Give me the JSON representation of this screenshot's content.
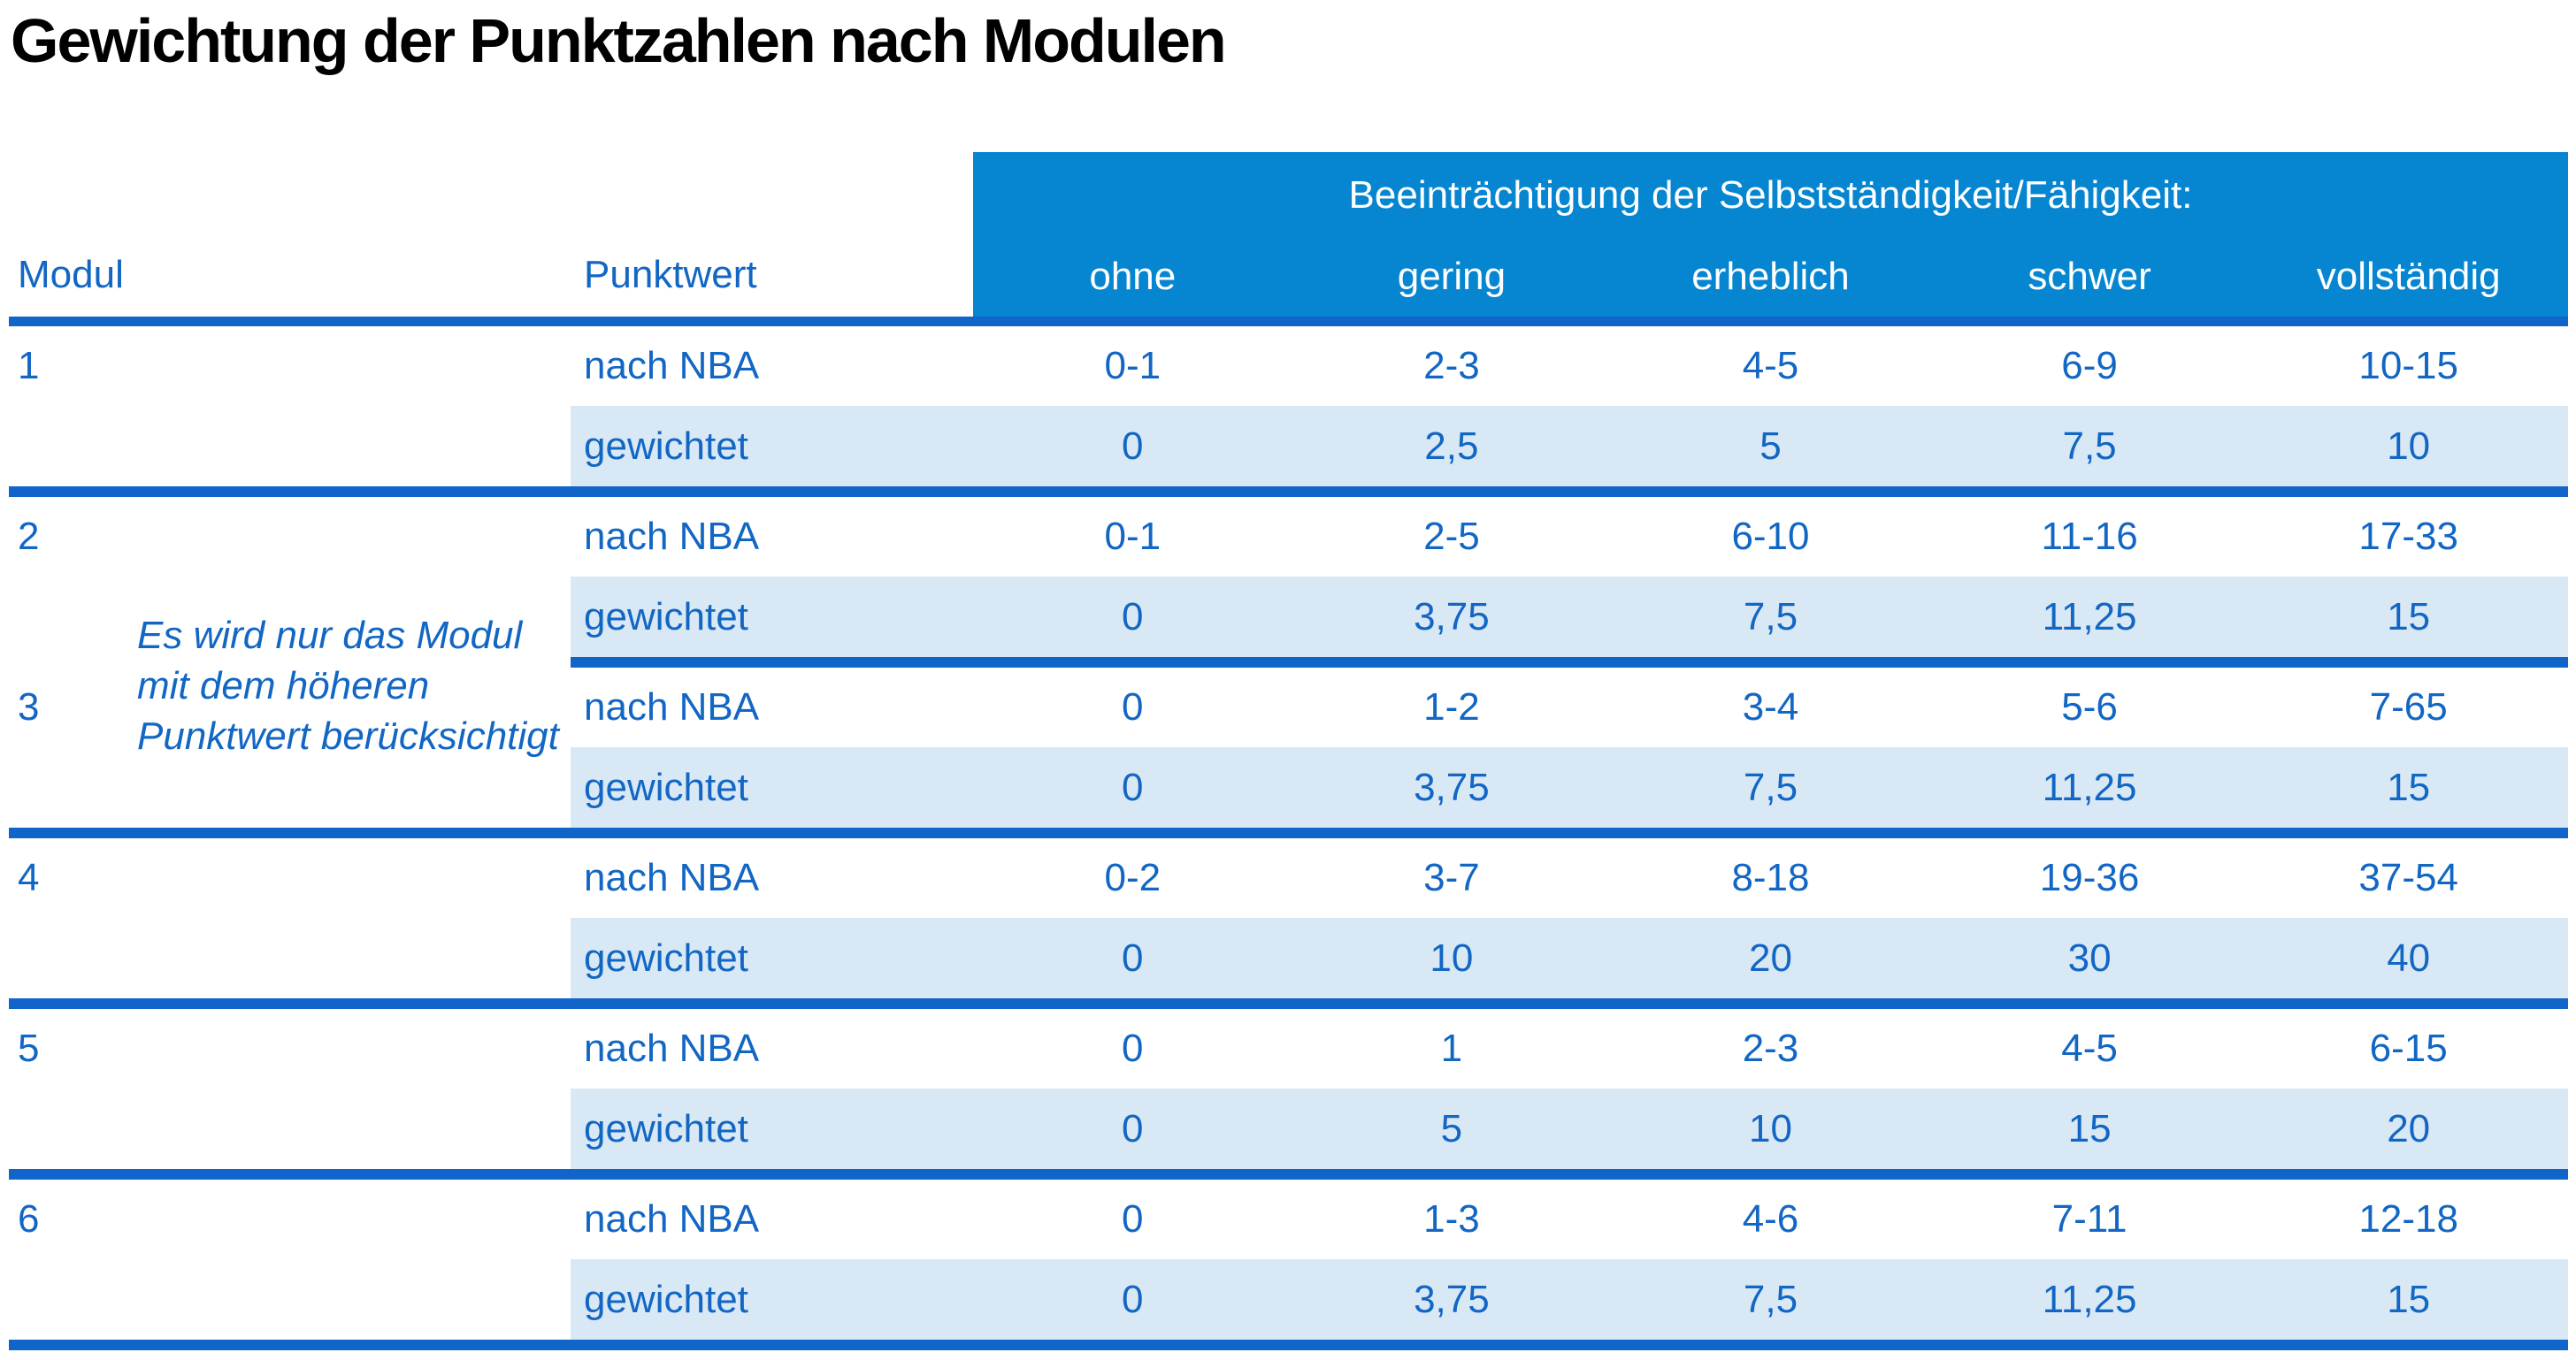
{
  "title": "Gewichtung der Punktzahlen nach Modulen",
  "colors": {
    "header_background": "#0686d1",
    "header_text": "#ffffff",
    "body_text_blue": "#1266c4",
    "weighted_row_band": "#d9e8f5",
    "separator_blue": "#1164ca",
    "title_text": "#000000",
    "page_background": "#ffffff"
  },
  "table": {
    "modul_header": "Modul",
    "punktwert_header": "Punktwert",
    "impairment_header": "Beeinträchtigung der Selbstständigkeit/Fähigkeit:",
    "severity_levels": [
      "ohne",
      "gering",
      "erheblich",
      "schwer",
      "vollständig"
    ],
    "row_labels": {
      "nba": "nach NBA",
      "weighted": "gewichtet"
    },
    "note": {
      "line1": "Es wird nur das Modul",
      "line2": "mit dem höheren",
      "line3": "Punktwert berücksichtigt"
    },
    "modules": [
      {
        "id": "1",
        "nba": [
          "0-1",
          "2-3",
          "4-5",
          "6-9",
          "10-15"
        ],
        "weighted": [
          "0",
          "2,5",
          "5",
          "7,5",
          "10"
        ]
      },
      {
        "id": "2",
        "nba": [
          "0-1",
          "2-5",
          "6-10",
          "11-16",
          "17-33"
        ],
        "weighted": [
          "0",
          "3,75",
          "7,5",
          "11,25",
          "15"
        ]
      },
      {
        "id": "3",
        "nba": [
          "0",
          "1-2",
          "3-4",
          "5-6",
          "7-65"
        ],
        "weighted": [
          "0",
          "3,75",
          "7,5",
          "11,25",
          "15"
        ]
      },
      {
        "id": "4",
        "nba": [
          "0-2",
          "3-7",
          "8-18",
          "19-36",
          "37-54"
        ],
        "weighted": [
          "0",
          "10",
          "20",
          "30",
          "40"
        ]
      },
      {
        "id": "5",
        "nba": [
          "0",
          "1",
          "2-3",
          "4-5",
          "6-15"
        ],
        "weighted": [
          "0",
          "5",
          "10",
          "15",
          "20"
        ]
      },
      {
        "id": "6",
        "nba": [
          "0",
          "1-3",
          "4-6",
          "7-11",
          "12-18"
        ],
        "weighted": [
          "0",
          "3,75",
          "7,5",
          "11,25",
          "15"
        ]
      }
    ]
  }
}
